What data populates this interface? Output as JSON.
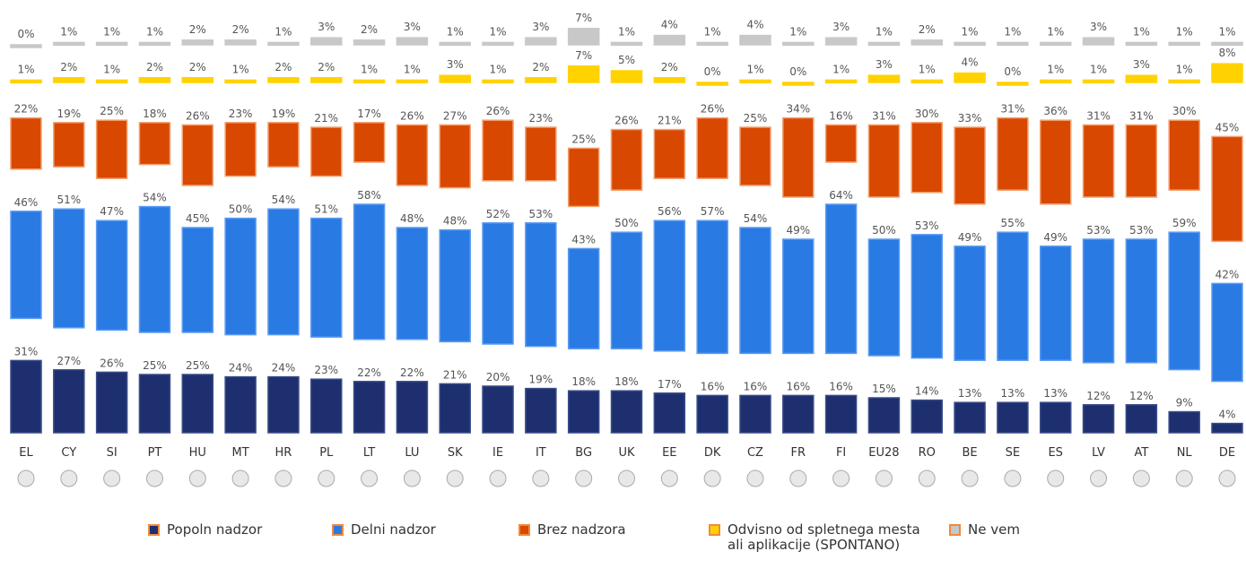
{
  "chart_data": {
    "type": "bar",
    "categories": [
      "EL",
      "CY",
      "SI",
      "PT",
      "HU",
      "MT",
      "HR",
      "PL",
      "LT",
      "LU",
      "SK",
      "IE",
      "IT",
      "BG",
      "UK",
      "EE",
      "DK",
      "CZ",
      "FR",
      "FI",
      "EU28",
      "RO",
      "BE",
      "SE",
      "ES",
      "LV",
      "AT",
      "NL",
      "DE"
    ],
    "series": [
      {
        "name": "Popoln nadzor",
        "color": "#1d2f6f",
        "values": [
          31,
          27,
          26,
          25,
          25,
          24,
          24,
          23,
          22,
          22,
          21,
          20,
          19,
          18,
          18,
          17,
          16,
          16,
          16,
          16,
          15,
          14,
          13,
          13,
          13,
          12,
          12,
          9,
          4
        ],
        "value_labels": [
          "31%",
          "27%",
          "26%",
          "25%",
          "25%",
          "24%",
          "24%",
          "23%",
          "22%",
          "22%",
          "21%",
          "20%",
          "19%",
          "18%",
          "18%",
          "17%",
          "16%",
          "16%",
          "16%",
          "16%",
          "15%",
          "14%",
          "13%",
          "13%",
          "13%",
          "12%",
          "12%",
          "9%",
          "4%"
        ]
      },
      {
        "name": "Delni nadzor",
        "color": "#2a7ae4",
        "values": [
          46,
          51,
          47,
          54,
          45,
          50,
          54,
          51,
          58,
          48,
          48,
          52,
          53,
          43,
          50,
          56,
          57,
          54,
          49,
          64,
          50,
          53,
          49,
          55,
          49,
          53,
          53,
          59,
          42
        ],
        "value_labels": [
          "46%",
          "51%",
          "47%",
          "54%",
          "45%",
          "50%",
          "54%",
          "51%",
          "58%",
          "48%",
          "48%",
          "52%",
          "53%",
          "43%",
          "50%",
          "56%",
          "57%",
          "54%",
          "49%",
          "64%",
          "50%",
          "53%",
          "49%",
          "55%",
          "49%",
          "53%",
          "53%",
          "59%",
          "42%"
        ]
      },
      {
        "name": "Brez nadzora",
        "color": "#d94800",
        "values": [
          22,
          19,
          25,
          18,
          26,
          23,
          19,
          21,
          17,
          26,
          27,
          26,
          23,
          25,
          26,
          21,
          26,
          25,
          34,
          16,
          31,
          30,
          33,
          31,
          36,
          31,
          31,
          30,
          45
        ],
        "value_labels": [
          "22%",
          "19%",
          "25%",
          "18%",
          "26%",
          "23%",
          "19%",
          "21%",
          "17%",
          "26%",
          "27%",
          "26%",
          "23%",
          "25%",
          "26%",
          "21%",
          "26%",
          "25%",
          "34%",
          "16%",
          "31%",
          "30%",
          "33%",
          "31%",
          "36%",
          "31%",
          "31%",
          "30%",
          "45%"
        ]
      },
      {
        "name": "Odvisno od spletnega mesta ali aplikacije (SPONTANO)",
        "color": "#ffd200",
        "values": [
          1,
          2,
          1,
          2,
          2,
          1,
          2,
          2,
          1,
          1,
          3,
          1,
          2,
          7,
          5,
          2,
          0,
          1,
          0,
          1,
          3,
          1,
          4,
          0,
          1,
          1,
          3,
          1,
          8
        ],
        "value_labels": [
          "1%",
          "2%",
          "1%",
          "2%",
          "2%",
          "1%",
          "2%",
          "2%",
          "1%",
          "1%",
          "3%",
          "1%",
          "2%",
          "7%",
          "5%",
          "2%",
          "0%",
          "1%",
          "0%",
          "1%",
          "3%",
          "1%",
          "4%",
          "0%",
          "1%",
          "1%",
          "3%",
          "1%",
          "8%"
        ]
      },
      {
        "name": "Ne vem",
        "color": "#c8c8c8",
        "values": [
          0,
          1,
          1,
          1,
          2,
          2,
          1,
          3,
          2,
          3,
          1,
          1,
          3,
          7,
          1,
          4,
          1,
          4,
          1,
          3,
          1,
          2,
          1,
          1,
          1,
          3,
          1,
          1,
          1
        ],
        "value_labels": [
          "0%",
          "1%",
          "1%",
          "1%",
          "2%",
          "2%",
          "1%",
          "3%",
          "2%",
          "3%",
          "1%",
          "1%",
          "3%",
          "7%",
          "1%",
          "4%",
          "1%",
          "4%",
          "1%",
          "3%",
          "1%",
          "2%",
          "1%",
          "1%",
          "1%",
          "3%",
          "1%",
          "1%",
          "1%"
        ]
      }
    ]
  }
}
